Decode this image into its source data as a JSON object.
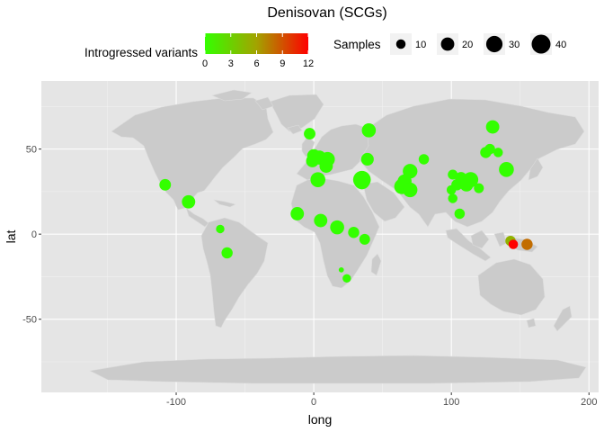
{
  "chart_data": {
    "type": "scatter",
    "title": "Denisovan (SCGs)",
    "xlabel": "long",
    "ylabel": "lat",
    "xlim": [
      -198,
      207
    ],
    "ylim": [
      -93,
      90
    ],
    "x_ticks": [
      -100,
      0,
      100,
      200
    ],
    "y_ticks": [
      -50,
      0,
      50
    ],
    "grid": true,
    "color_legend": {
      "title": "Introgressed variants",
      "min": 0,
      "max": 12,
      "ticks": [
        0,
        3,
        6,
        9,
        12
      ],
      "low_color": "#33ff00",
      "mid_color": "#a3a300",
      "high_color": "#ff0000"
    },
    "size_legend": {
      "title": "Samples",
      "values": [
        10,
        20,
        30,
        40
      ]
    },
    "points": [
      {
        "long": -108,
        "lat": 29,
        "samples": 15,
        "variants": 0
      },
      {
        "long": -91,
        "lat": 19,
        "samples": 20,
        "variants": 0
      },
      {
        "long": -68,
        "lat": 3,
        "samples": 8,
        "variants": 0
      },
      {
        "long": -63,
        "lat": -11,
        "samples": 14,
        "variants": 0
      },
      {
        "long": -3,
        "lat": 59,
        "samples": 15,
        "variants": 0
      },
      {
        "long": 0,
        "lat": 46,
        "samples": 20,
        "variants": 0
      },
      {
        "long": -1,
        "lat": 43,
        "samples": 18,
        "variants": 0
      },
      {
        "long": 4,
        "lat": 45,
        "samples": 22,
        "variants": 0
      },
      {
        "long": 10,
        "lat": 44,
        "samples": 24,
        "variants": 0
      },
      {
        "long": 9,
        "lat": 40,
        "samples": 20,
        "variants": 0
      },
      {
        "long": 3,
        "lat": 32,
        "samples": 25,
        "variants": 0
      },
      {
        "long": 40,
        "lat": 61,
        "samples": 22,
        "variants": 0
      },
      {
        "long": 39,
        "lat": 44,
        "samples": 18,
        "variants": 0
      },
      {
        "long": 35,
        "lat": 32,
        "samples": 35,
        "variants": 0
      },
      {
        "long": 35,
        "lat": 31,
        "samples": 28,
        "variants": 0
      },
      {
        "long": -12,
        "lat": 12,
        "samples": 20,
        "variants": 0
      },
      {
        "long": 5,
        "lat": 8,
        "samples": 20,
        "variants": 0
      },
      {
        "long": 17,
        "lat": 4,
        "samples": 22,
        "variants": 0
      },
      {
        "long": 29,
        "lat": 1,
        "samples": 14,
        "variants": 0
      },
      {
        "long": 37,
        "lat": -3,
        "samples": 13,
        "variants": 0
      },
      {
        "long": 20,
        "lat": -21,
        "samples": 3,
        "variants": 0
      },
      {
        "long": 24,
        "lat": -26,
        "samples": 8,
        "variants": 0
      },
      {
        "long": 70,
        "lat": 37,
        "samples": 24,
        "variants": 0
      },
      {
        "long": 66,
        "lat": 31,
        "samples": 22,
        "variants": 0
      },
      {
        "long": 64,
        "lat": 28,
        "samples": 26,
        "variants": 0
      },
      {
        "long": 70,
        "lat": 26,
        "samples": 24,
        "variants": 0
      },
      {
        "long": 80,
        "lat": 44,
        "samples": 12,
        "variants": 0
      },
      {
        "long": 101,
        "lat": 35,
        "samples": 11,
        "variants": 0
      },
      {
        "long": 100,
        "lat": 26,
        "samples": 10,
        "variants": 0
      },
      {
        "long": 101,
        "lat": 21,
        "samples": 10,
        "variants": 0
      },
      {
        "long": 104,
        "lat": 29,
        "samples": 14,
        "variants": 0
      },
      {
        "long": 107,
        "lat": 33,
        "samples": 16,
        "variants": 0
      },
      {
        "long": 111,
        "lat": 29,
        "samples": 20,
        "variants": 0
      },
      {
        "long": 114,
        "lat": 32,
        "samples": 26,
        "variants": 0
      },
      {
        "long": 120,
        "lat": 27,
        "samples": 11,
        "variants": 0
      },
      {
        "long": 106,
        "lat": 12,
        "samples": 12,
        "variants": 0
      },
      {
        "long": 125,
        "lat": 48,
        "samples": 14,
        "variants": 0
      },
      {
        "long": 128,
        "lat": 50,
        "samples": 12,
        "variants": 0
      },
      {
        "long": 130,
        "lat": 63,
        "samples": 20,
        "variants": 0
      },
      {
        "long": 134,
        "lat": 48,
        "samples": 10,
        "variants": 0
      },
      {
        "long": 140,
        "lat": 38,
        "samples": 25,
        "variants": 0
      },
      {
        "long": 143,
        "lat": -4,
        "samples": 12,
        "variants": 5
      },
      {
        "long": 145,
        "lat": -6,
        "samples": 10,
        "variants": 12
      },
      {
        "long": 155,
        "lat": -6,
        "samples": 14,
        "variants": 8
      }
    ]
  }
}
